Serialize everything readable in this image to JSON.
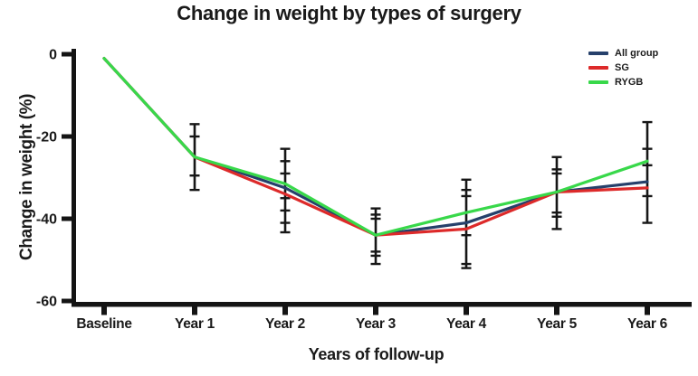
{
  "chart_data": {
    "type": "line",
    "title": "Change in weight by types of surgery",
    "xlabel": "Years of follow-up",
    "ylabel": "Change in weight (%)",
    "categories": [
      "Baseline",
      "Year 1",
      "Year 2",
      "Year 3",
      "Year 4",
      "Year 5",
      "Year 6"
    ],
    "y_ticks": [
      "0",
      "-20",
      "-40",
      "-60"
    ],
    "y_tick_values": [
      0,
      -20,
      -40,
      -60
    ],
    "ylim": [
      -60,
      0
    ],
    "grid": false,
    "legend_position": "top-right",
    "axis_color": "#141414",
    "error_bar_color": "#161616",
    "series": [
      {
        "name": "All group",
        "color": "#26406b",
        "values": [
          -1,
          -25,
          -32.5,
          -44,
          -41,
          -33.5,
          -31
        ]
      },
      {
        "name": "SG",
        "color": "#dd2a2a",
        "values": [
          -1,
          -25,
          -34,
          -44,
          -42.5,
          -33.5,
          -32.5
        ]
      },
      {
        "name": "RYGB",
        "color": "#38d84a",
        "values": [
          -1,
          -25,
          -31.5,
          -44,
          -38.5,
          -33.5,
          -26
        ]
      }
    ],
    "error_bars": [
      {
        "category": "Year 1",
        "low": -33,
        "high": -17,
        "caps": [
          -17,
          -20,
          -29.5,
          -33
        ]
      },
      {
        "category": "Year 2",
        "low": -43.3,
        "high": -23,
        "caps": [
          -23,
          -26,
          -29,
          -35,
          -38,
          -41,
          -43.3
        ]
      },
      {
        "category": "Year 3",
        "low": -51,
        "high": -37.5,
        "caps": [
          -37.5,
          -39,
          -40,
          -48,
          -49,
          -51
        ]
      },
      {
        "category": "Year 4",
        "low": -52,
        "high": -30.5,
        "caps": [
          -30.5,
          -33,
          -34.5,
          -44,
          -51,
          -52
        ]
      },
      {
        "category": "Year 5",
        "low": -42.5,
        "high": -25,
        "caps": [
          -25,
          -28,
          -29,
          -38.5,
          -39.5,
          -42.5
        ]
      },
      {
        "category": "Year 6",
        "low": -41,
        "high": -16.5,
        "caps": [
          -16.5,
          -23,
          -27,
          -34.5,
          -41
        ]
      }
    ]
  }
}
